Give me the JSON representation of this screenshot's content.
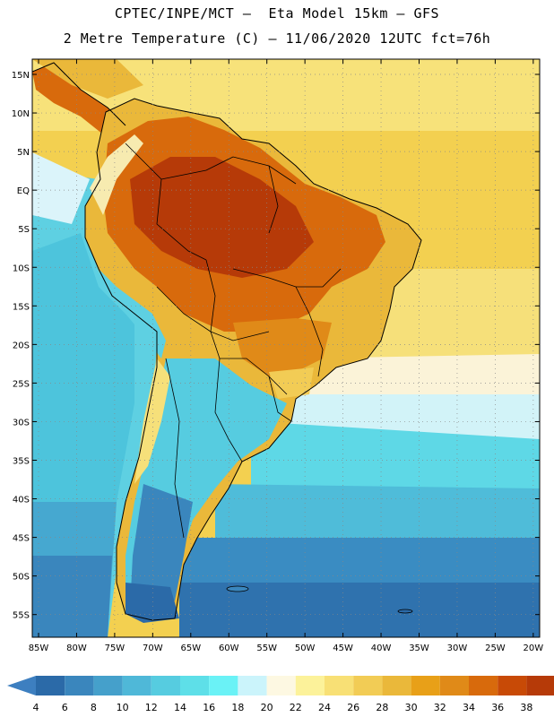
{
  "header": {
    "line1": "CPTEC/INPE/MCT –  Eta Model 15km – GFS",
    "line2": "2 Metre Temperature (C) – 11/06/2020 12UTC fct=76h"
  },
  "axes": {
    "lat_labels": [
      "15N",
      "10N",
      "5N",
      "EQ",
      "5S",
      "10S",
      "15S",
      "20S",
      "25S",
      "30S",
      "35S",
      "40S",
      "45S",
      "50S",
      "55S"
    ],
    "lon_labels": [
      "85W",
      "80W",
      "75W",
      "70W",
      "65W",
      "60W",
      "55W",
      "50W",
      "45W",
      "40W",
      "35W",
      "30W",
      "25W",
      "20W"
    ]
  },
  "legend": {
    "values": [
      "4",
      "6",
      "8",
      "10",
      "12",
      "14",
      "16",
      "18",
      "20",
      "22",
      "24",
      "26",
      "28",
      "30",
      "32",
      "34",
      "36",
      "38"
    ],
    "colors": [
      "#2b6aa8",
      "#3a86bd",
      "#45a0cb",
      "#4fb8d8",
      "#56cce0",
      "#5edfe8",
      "#6af2f6",
      "#cbf4fb",
      "#fdf8e2",
      "#fcf29a",
      "#f8e075",
      "#f2cc55",
      "#eab83a",
      "#e8a018",
      "#e08a18",
      "#d86a0c",
      "#c84a06",
      "#b63a08"
    ],
    "low_color": "#3d7fc0",
    "high_color": "#b13306"
  }
}
